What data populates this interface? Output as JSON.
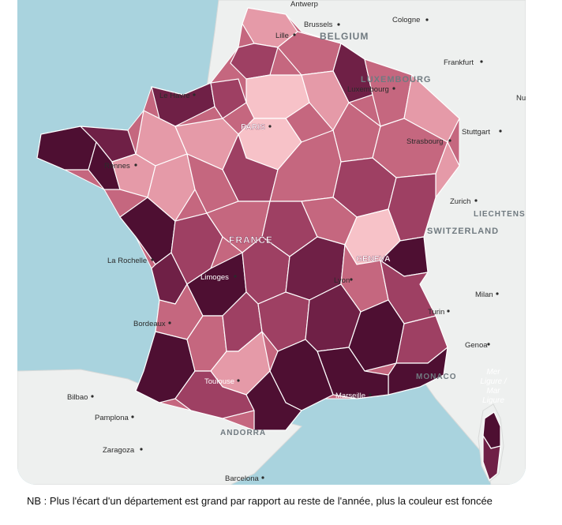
{
  "map": {
    "countries": {
      "belgium": "BELGIUM",
      "luxembourg": "LUXEMBOURG",
      "france": "FRANCE",
      "switzerland": "SWITZERLAND",
      "liechtenstein": "LIECHTENS",
      "monaco": "MONACO",
      "andorra": "ANDORRA"
    },
    "cities": {
      "antwerp": "Antwerp",
      "brussels": "Brussels",
      "cologne": "Cologne",
      "lille": "Lille",
      "frankfurt": "Frankfurt",
      "luxembourg_city": "Luxembourg",
      "le_havre": "Le Havre",
      "paris": "PARIS",
      "stuttgart": "Stuttgart",
      "strasbourg": "Strasbourg",
      "rennes": "Rennes",
      "zurich": "Zurich",
      "la_rochelle": "La Rochelle",
      "limoges": "Limoges",
      "geneva": "GENEVA",
      "lyon": "Lyon",
      "milan": "Milan",
      "bordeaux": "Bordeaux",
      "turin": "Turin",
      "genoa": "Genoa",
      "toulouse": "Toulouse",
      "marseille": "Marseille",
      "bilbao": "Bilbao",
      "pamplona": "Pamplona",
      "zaragoza": "Zaragoza",
      "barcelona": "Barcelona",
      "nu": "Nu"
    },
    "sea": "Mer Ligure / Mar Ligure",
    "sea_lines": [
      "Mer",
      "Ligure /",
      "Mar",
      "Ligure"
    ],
    "colors": {
      "water": "#a9d3de",
      "land": "#eef0ef",
      "level_1": "#f7c2c8",
      "level_2": "#e59aa8",
      "level_3": "#c5677f",
      "level_4": "#9e4063",
      "level_5": "#6f2046",
      "level_6": "#4e0f32"
    }
  },
  "caption": "NB : Plus l'écart d'un département est grand par rapport au reste de l'année, plus la couleur est foncée"
}
